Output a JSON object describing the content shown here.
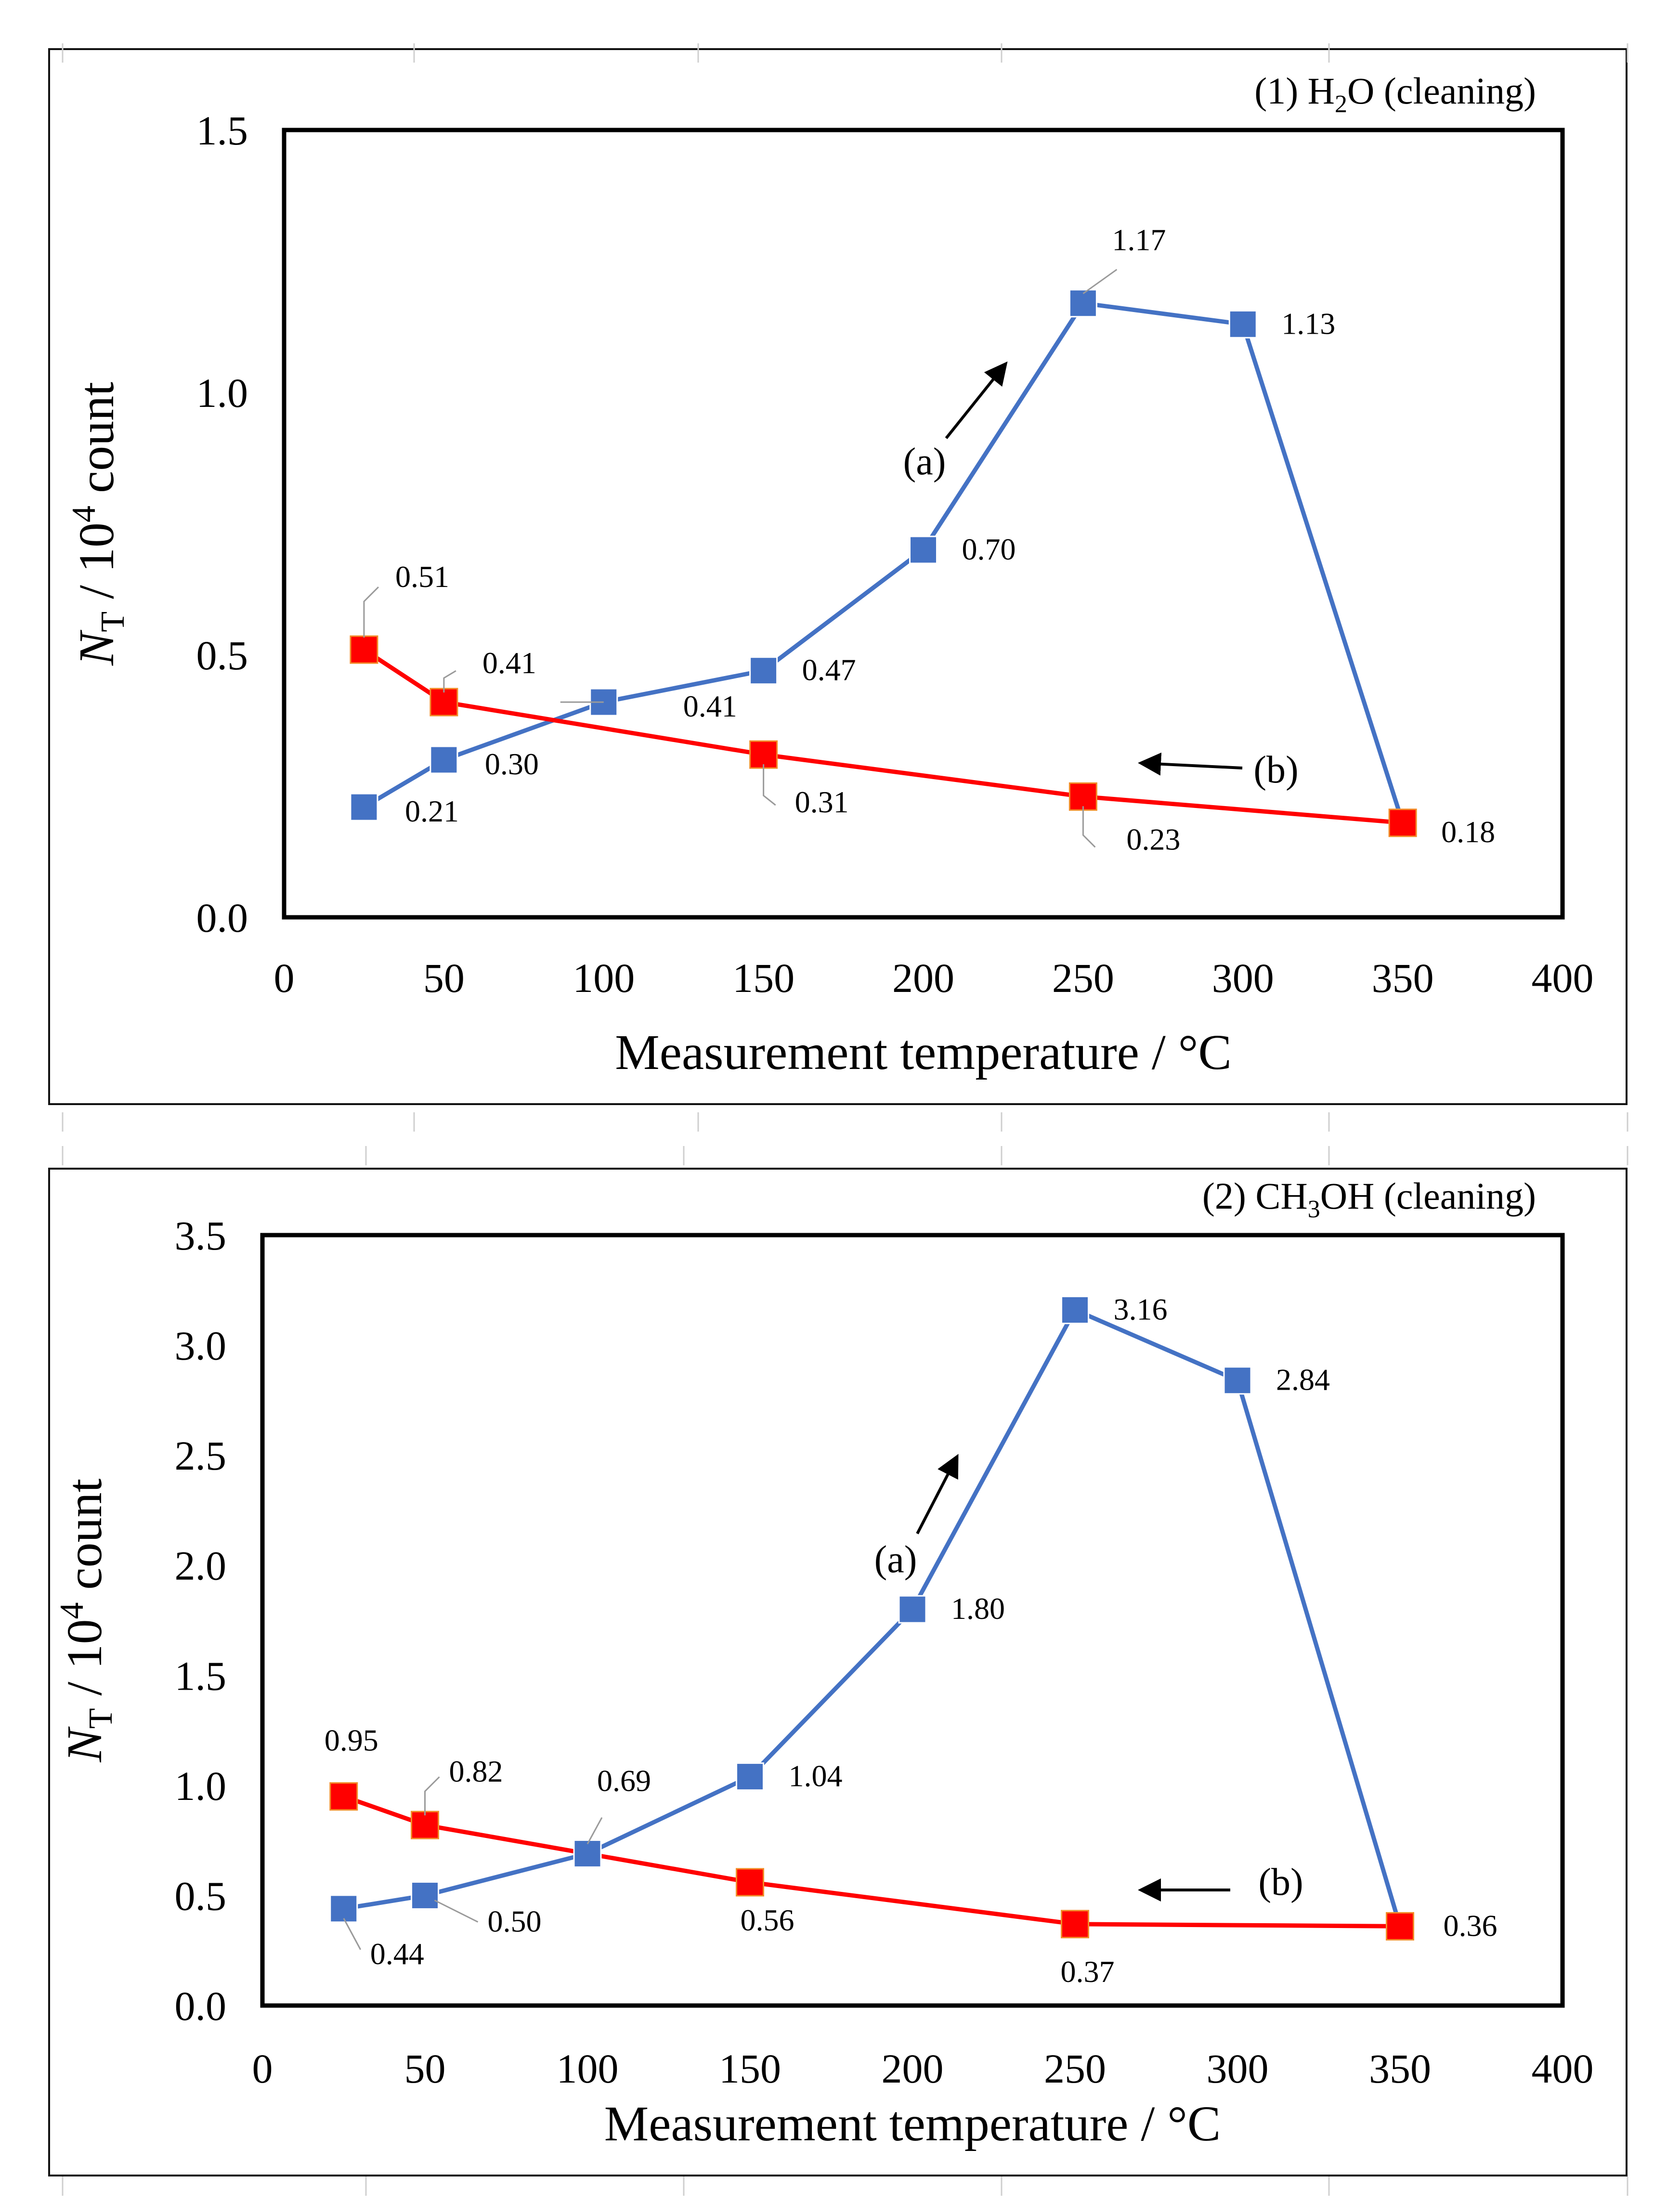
{
  "charts": [
    {
      "panel_label": "(1) H",
      "panel_label_sub": "2",
      "panel_label_tail": "O (cleaning)",
      "chart_data": {
        "type": "line",
        "title": "(1) H2O (cleaning)",
        "xlabel": "Measurement temperature / °C",
        "ylabel": "NT / 10^4 count",
        "xlim": [
          0,
          400
        ],
        "ylim": [
          0,
          1.5
        ],
        "x_ticks": [
          0,
          50,
          100,
          150,
          200,
          250,
          300,
          350,
          400
        ],
        "y_ticks": [
          "0.0",
          "0.5",
          "1.0",
          "1.5"
        ],
        "series": [
          {
            "name": "(a)",
            "color": "#4472C4",
            "x": [
              25,
              50,
              100,
              150,
              200,
              250,
              300,
              350
            ],
            "values": [
              0.21,
              0.3,
              0.41,
              0.47,
              0.7,
              1.17,
              1.13,
              0.18
            ],
            "labels": [
              "0.21",
              "0.30",
              "0.41",
              "0.47",
              "0.70",
              "1.17",
              "1.13",
              ""
            ]
          },
          {
            "name": "(b)",
            "color": "#FF0000",
            "x": [
              25,
              50,
              150,
              250,
              350
            ],
            "values": [
              0.51,
              0.41,
              0.31,
              0.23,
              0.18
            ],
            "labels": [
              "0.51",
              "0.41",
              "0.31",
              "0.23",
              "0.18"
            ]
          }
        ],
        "annotations": [
          "(a)",
          "(b)"
        ]
      }
    },
    {
      "panel_label": "(2) CH",
      "panel_label_sub": "3",
      "panel_label_tail": "OH (cleaning)",
      "chart_data": {
        "type": "line",
        "title": "(2) CH3OH (cleaning)",
        "xlabel": "Measurement temperature / °C",
        "ylabel": "NT / 10^4 count",
        "xlim": [
          0,
          400
        ],
        "ylim": [
          0,
          3.5
        ],
        "x_ticks": [
          0,
          50,
          100,
          150,
          200,
          250,
          300,
          350,
          400
        ],
        "y_ticks": [
          "0.0",
          "0.5",
          "1.0",
          "1.5",
          "2.0",
          "2.5",
          "3.0",
          "3.5"
        ],
        "series": [
          {
            "name": "(a)",
            "color": "#4472C4",
            "x": [
              25,
              50,
              100,
              150,
              200,
              250,
              300,
              350
            ],
            "values": [
              0.44,
              0.5,
              0.69,
              1.04,
              1.8,
              3.16,
              2.84,
              0.36
            ],
            "labels": [
              "0.44",
              "0.50",
              "0.69",
              "1.04",
              "1.80",
              "3.16",
              "2.84",
              ""
            ]
          },
          {
            "name": "(b)",
            "color": "#FF0000",
            "x": [
              25,
              50,
              150,
              250,
              350
            ],
            "values": [
              0.95,
              0.82,
              0.56,
              0.37,
              0.36
            ],
            "labels": [
              "0.95",
              "0.82",
              "0.56",
              "0.37",
              "0.36"
            ]
          }
        ],
        "annotations": [
          "(a)",
          "(b)"
        ]
      }
    }
  ]
}
